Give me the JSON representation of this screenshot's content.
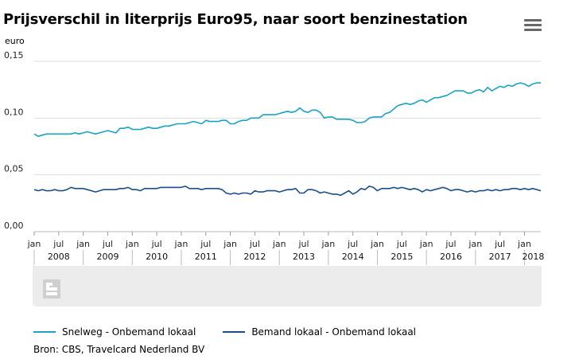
{
  "title": "Prijsverschil in literprijs Euro95, naar soort benzinestation",
  "menu_icon": "hamburger-menu-icon",
  "source": "Bron: CBS, Travelcard Nederland BV",
  "colors": {
    "snelweg": "#1aa3c4",
    "bemand": "#1b4f8a",
    "grid": "#dddddd",
    "band": "#ececec"
  },
  "chart_data": {
    "type": "line",
    "ylabel": "euro",
    "ylim": [
      0,
      0.15
    ],
    "yticks": [
      {
        "value": 0.0,
        "label": "0,00"
      },
      {
        "value": 0.05,
        "label": "0,05"
      },
      {
        "value": 0.1,
        "label": "0,10"
      },
      {
        "value": 0.15,
        "label": "0,15"
      }
    ],
    "x_start": "2008-01",
    "x_end": "2018-05",
    "month_ticks": [
      {
        "month": "2008-01",
        "label": "jan"
      },
      {
        "month": "2008-07",
        "label": "jul"
      },
      {
        "month": "2009-01",
        "label": "jan"
      },
      {
        "month": "2009-07",
        "label": "jul"
      },
      {
        "month": "2010-01",
        "label": "jan"
      },
      {
        "month": "2010-07",
        "label": "jul"
      },
      {
        "month": "2011-01",
        "label": "jan"
      },
      {
        "month": "2011-07",
        "label": "jul"
      },
      {
        "month": "2012-01",
        "label": "jan"
      },
      {
        "month": "2012-07",
        "label": "jul"
      },
      {
        "month": "2013-01",
        "label": "jan"
      },
      {
        "month": "2013-07",
        "label": "jul"
      },
      {
        "month": "2014-01",
        "label": "jan"
      },
      {
        "month": "2014-07",
        "label": "jul"
      },
      {
        "month": "2015-01",
        "label": "jan"
      },
      {
        "month": "2015-07",
        "label": "jul"
      },
      {
        "month": "2016-01",
        "label": "jan"
      },
      {
        "month": "2016-07",
        "label": "jul"
      },
      {
        "month": "2017-01",
        "label": "jan"
      },
      {
        "month": "2017-07",
        "label": "jul"
      },
      {
        "month": "2018-01",
        "label": "jan"
      }
    ],
    "year_labels": [
      "2008",
      "2009",
      "2010",
      "2011",
      "2012",
      "2013",
      "2014",
      "2015",
      "2016",
      "2017",
      "2018"
    ],
    "series": [
      {
        "name": "Snelweg - Onbemand lokaal",
        "color": "#1aa3c4",
        "points": [
          [
            "2008-01",
            0.086
          ],
          [
            "2008-02",
            0.084
          ],
          [
            "2008-03",
            0.085
          ],
          [
            "2008-04",
            0.086
          ],
          [
            "2008-05",
            0.086
          ],
          [
            "2008-06",
            0.086
          ],
          [
            "2008-07",
            0.086
          ],
          [
            "2008-08",
            0.086
          ],
          [
            "2008-09",
            0.086
          ],
          [
            "2008-10",
            0.086
          ],
          [
            "2008-11",
            0.087
          ],
          [
            "2008-12",
            0.086
          ],
          [
            "2009-01",
            0.087
          ],
          [
            "2009-02",
            0.088
          ],
          [
            "2009-03",
            0.087
          ],
          [
            "2009-04",
            0.086
          ],
          [
            "2009-05",
            0.087
          ],
          [
            "2009-06",
            0.088
          ],
          [
            "2009-07",
            0.089
          ],
          [
            "2009-08",
            0.088
          ],
          [
            "2009-09",
            0.087
          ],
          [
            "2009-10",
            0.091
          ],
          [
            "2009-11",
            0.091
          ],
          [
            "2009-12",
            0.092
          ],
          [
            "2010-01",
            0.09
          ],
          [
            "2010-02",
            0.09
          ],
          [
            "2010-03",
            0.09
          ],
          [
            "2010-04",
            0.091
          ],
          [
            "2010-05",
            0.092
          ],
          [
            "2010-06",
            0.091
          ],
          [
            "2010-07",
            0.091
          ],
          [
            "2010-08",
            0.092
          ],
          [
            "2010-09",
            0.093
          ],
          [
            "2010-10",
            0.093
          ],
          [
            "2010-11",
            0.094
          ],
          [
            "2010-12",
            0.095
          ],
          [
            "2011-01",
            0.095
          ],
          [
            "2011-02",
            0.095
          ],
          [
            "2011-03",
            0.096
          ],
          [
            "2011-04",
            0.097
          ],
          [
            "2011-05",
            0.096
          ],
          [
            "2011-06",
            0.095
          ],
          [
            "2011-07",
            0.098
          ],
          [
            "2011-08",
            0.097
          ],
          [
            "2011-09",
            0.097
          ],
          [
            "2011-10",
            0.097
          ],
          [
            "2011-11",
            0.098
          ],
          [
            "2011-12",
            0.098
          ],
          [
            "2012-01",
            0.095
          ],
          [
            "2012-02",
            0.095
          ],
          [
            "2012-03",
            0.097
          ],
          [
            "2012-04",
            0.098
          ],
          [
            "2012-05",
            0.098
          ],
          [
            "2012-06",
            0.1
          ],
          [
            "2012-07",
            0.1
          ],
          [
            "2012-08",
            0.1
          ],
          [
            "2012-09",
            0.103
          ],
          [
            "2012-10",
            0.103
          ],
          [
            "2012-11",
            0.103
          ],
          [
            "2012-12",
            0.103
          ],
          [
            "2013-01",
            0.104
          ],
          [
            "2013-02",
            0.105
          ],
          [
            "2013-03",
            0.106
          ],
          [
            "2013-04",
            0.105
          ],
          [
            "2013-05",
            0.106
          ],
          [
            "2013-06",
            0.109
          ],
          [
            "2013-07",
            0.106
          ],
          [
            "2013-08",
            0.105
          ],
          [
            "2013-09",
            0.107
          ],
          [
            "2013-10",
            0.107
          ],
          [
            "2013-11",
            0.105
          ],
          [
            "2013-12",
            0.1
          ],
          [
            "2014-01",
            0.101
          ],
          [
            "2014-02",
            0.101
          ],
          [
            "2014-03",
            0.099
          ],
          [
            "2014-04",
            0.099
          ],
          [
            "2014-05",
            0.099
          ],
          [
            "2014-06",
            0.099
          ],
          [
            "2014-07",
            0.098
          ],
          [
            "2014-08",
            0.096
          ],
          [
            "2014-09",
            0.096
          ],
          [
            "2014-10",
            0.097
          ],
          [
            "2014-11",
            0.1
          ],
          [
            "2014-12",
            0.101
          ],
          [
            "2015-01",
            0.101
          ],
          [
            "2015-02",
            0.101
          ],
          [
            "2015-03",
            0.104
          ],
          [
            "2015-04",
            0.105
          ],
          [
            "2015-05",
            0.108
          ],
          [
            "2015-06",
            0.111
          ],
          [
            "2015-07",
            0.112
          ],
          [
            "2015-08",
            0.113
          ],
          [
            "2015-09",
            0.112
          ],
          [
            "2015-10",
            0.113
          ],
          [
            "2015-11",
            0.115
          ],
          [
            "2015-12",
            0.116
          ],
          [
            "2016-01",
            0.114
          ],
          [
            "2016-02",
            0.116
          ],
          [
            "2016-03",
            0.118
          ],
          [
            "2016-04",
            0.118
          ],
          [
            "2016-05",
            0.119
          ],
          [
            "2016-06",
            0.12
          ],
          [
            "2016-07",
            0.122
          ],
          [
            "2016-08",
            0.124
          ],
          [
            "2016-09",
            0.124
          ],
          [
            "2016-10",
            0.124
          ],
          [
            "2016-11",
            0.122
          ],
          [
            "2016-12",
            0.122
          ],
          [
            "2017-01",
            0.124
          ],
          [
            "2017-02",
            0.125
          ],
          [
            "2017-03",
            0.123
          ],
          [
            "2017-04",
            0.127
          ],
          [
            "2017-05",
            0.124
          ],
          [
            "2017-06",
            0.126
          ],
          [
            "2017-07",
            0.128
          ],
          [
            "2017-08",
            0.127
          ],
          [
            "2017-09",
            0.129
          ],
          [
            "2017-10",
            0.128
          ],
          [
            "2017-11",
            0.13
          ],
          [
            "2017-12",
            0.131
          ],
          [
            "2018-01",
            0.13
          ],
          [
            "2018-02",
            0.128
          ],
          [
            "2018-03",
            0.13
          ],
          [
            "2018-04",
            0.131
          ],
          [
            "2018-05",
            0.131
          ]
        ]
      },
      {
        "name": "Bemand lokaal - Onbemand lokaal",
        "color": "#1b4f8a",
        "points": [
          [
            "2008-01",
            0.037
          ],
          [
            "2008-02",
            0.036
          ],
          [
            "2008-03",
            0.037
          ],
          [
            "2008-04",
            0.036
          ],
          [
            "2008-05",
            0.036
          ],
          [
            "2008-06",
            0.037
          ],
          [
            "2008-07",
            0.036
          ],
          [
            "2008-08",
            0.036
          ],
          [
            "2008-09",
            0.037
          ],
          [
            "2008-10",
            0.039
          ],
          [
            "2008-11",
            0.038
          ],
          [
            "2008-12",
            0.038
          ],
          [
            "2009-01",
            0.038
          ],
          [
            "2009-02",
            0.037
          ],
          [
            "2009-03",
            0.036
          ],
          [
            "2009-04",
            0.035
          ],
          [
            "2009-05",
            0.036
          ],
          [
            "2009-06",
            0.037
          ],
          [
            "2009-07",
            0.037
          ],
          [
            "2009-08",
            0.037
          ],
          [
            "2009-09",
            0.037
          ],
          [
            "2009-10",
            0.038
          ],
          [
            "2009-11",
            0.038
          ],
          [
            "2009-12",
            0.039
          ],
          [
            "2010-01",
            0.037
          ],
          [
            "2010-02",
            0.037
          ],
          [
            "2010-03",
            0.036
          ],
          [
            "2010-04",
            0.038
          ],
          [
            "2010-05",
            0.038
          ],
          [
            "2010-06",
            0.038
          ],
          [
            "2010-07",
            0.038
          ],
          [
            "2010-08",
            0.039
          ],
          [
            "2010-09",
            0.039
          ],
          [
            "2010-10",
            0.039
          ],
          [
            "2010-11",
            0.039
          ],
          [
            "2010-12",
            0.039
          ],
          [
            "2011-01",
            0.039
          ],
          [
            "2011-02",
            0.04
          ],
          [
            "2011-03",
            0.038
          ],
          [
            "2011-04",
            0.038
          ],
          [
            "2011-05",
            0.038
          ],
          [
            "2011-06",
            0.037
          ],
          [
            "2011-07",
            0.038
          ],
          [
            "2011-08",
            0.038
          ],
          [
            "2011-09",
            0.038
          ],
          [
            "2011-10",
            0.038
          ],
          [
            "2011-11",
            0.037
          ],
          [
            "2011-12",
            0.034
          ],
          [
            "2012-01",
            0.033
          ],
          [
            "2012-02",
            0.034
          ],
          [
            "2012-03",
            0.033
          ],
          [
            "2012-04",
            0.034
          ],
          [
            "2012-05",
            0.034
          ],
          [
            "2012-06",
            0.033
          ],
          [
            "2012-07",
            0.036
          ],
          [
            "2012-08",
            0.035
          ],
          [
            "2012-09",
            0.035
          ],
          [
            "2012-10",
            0.036
          ],
          [
            "2012-11",
            0.036
          ],
          [
            "2012-12",
            0.036
          ],
          [
            "2013-01",
            0.035
          ],
          [
            "2013-02",
            0.036
          ],
          [
            "2013-03",
            0.037
          ],
          [
            "2013-04",
            0.037
          ],
          [
            "2013-05",
            0.038
          ],
          [
            "2013-06",
            0.034
          ],
          [
            "2013-07",
            0.034
          ],
          [
            "2013-08",
            0.037
          ],
          [
            "2013-09",
            0.037
          ],
          [
            "2013-10",
            0.036
          ],
          [
            "2013-11",
            0.034
          ],
          [
            "2013-12",
            0.035
          ],
          [
            "2014-01",
            0.034
          ],
          [
            "2014-02",
            0.033
          ],
          [
            "2014-03",
            0.033
          ],
          [
            "2014-04",
            0.032
          ],
          [
            "2014-05",
            0.034
          ],
          [
            "2014-06",
            0.036
          ],
          [
            "2014-07",
            0.033
          ],
          [
            "2014-08",
            0.035
          ],
          [
            "2014-09",
            0.038
          ],
          [
            "2014-10",
            0.037
          ],
          [
            "2014-11",
            0.04
          ],
          [
            "2014-12",
            0.039
          ],
          [
            "2015-01",
            0.036
          ],
          [
            "2015-02",
            0.038
          ],
          [
            "2015-03",
            0.038
          ],
          [
            "2015-04",
            0.038
          ],
          [
            "2015-05",
            0.039
          ],
          [
            "2015-06",
            0.038
          ],
          [
            "2015-07",
            0.039
          ],
          [
            "2015-08",
            0.038
          ],
          [
            "2015-09",
            0.037
          ],
          [
            "2015-10",
            0.038
          ],
          [
            "2015-11",
            0.037
          ],
          [
            "2015-12",
            0.035
          ],
          [
            "2016-01",
            0.037
          ],
          [
            "2016-02",
            0.036
          ],
          [
            "2016-03",
            0.037
          ],
          [
            "2016-04",
            0.038
          ],
          [
            "2016-05",
            0.039
          ],
          [
            "2016-06",
            0.038
          ],
          [
            "2016-07",
            0.036
          ],
          [
            "2016-08",
            0.037
          ],
          [
            "2016-09",
            0.037
          ],
          [
            "2016-10",
            0.036
          ],
          [
            "2016-11",
            0.035
          ],
          [
            "2016-12",
            0.036
          ],
          [
            "2017-01",
            0.035
          ],
          [
            "2017-02",
            0.036
          ],
          [
            "2017-03",
            0.036
          ],
          [
            "2017-04",
            0.037
          ],
          [
            "2017-05",
            0.036
          ],
          [
            "2017-06",
            0.037
          ],
          [
            "2017-07",
            0.036
          ],
          [
            "2017-08",
            0.037
          ],
          [
            "2017-09",
            0.037
          ],
          [
            "2017-10",
            0.038
          ],
          [
            "2017-11",
            0.038
          ],
          [
            "2017-12",
            0.037
          ],
          [
            "2018-01",
            0.038
          ],
          [
            "2018-02",
            0.037
          ],
          [
            "2018-03",
            0.038
          ],
          [
            "2018-04",
            0.037
          ],
          [
            "2018-05",
            0.036
          ]
        ]
      }
    ],
    "grid": true,
    "legend_position": "bottom"
  }
}
